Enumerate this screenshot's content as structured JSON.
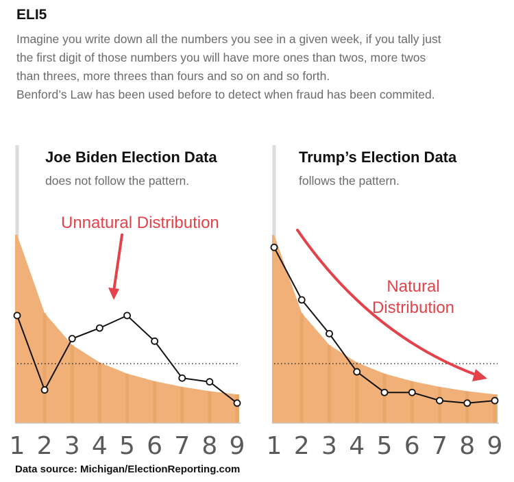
{
  "header": {
    "title": "ELI5",
    "lines": [
      "Imagine you write down all the numbers you see in a given week, if you tally just",
      "the first digit of those numbers you will have more ones than twos, more twos",
      "than threes, more threes than fours and so on and so forth.",
      "Benford’s Law has been used before to detect when fraud has been commited."
    ]
  },
  "source": "Data source: Michigan/ElectionReporting.com",
  "colors": {
    "area": "#f0b078",
    "area_line": "#e4a060",
    "arrow": "#e3424a",
    "line": "#111111",
    "axis_digits": "#5a5a5a"
  },
  "chart_data": [
    {
      "type": "line",
      "title": "Joe Biden Election Data",
      "subtitle": "does not follow the pattern.",
      "annotation": "Unnatural Distribution",
      "x": [
        1,
        2,
        3,
        4,
        5,
        6,
        7,
        8,
        9
      ],
      "series": [
        {
          "values": [
            30.1,
            17.6,
            12.5,
            9.7,
            7.9,
            6.7,
            5.8,
            5.1,
            4.6
          ]
        },
        {
          "values": [
            17.2,
            5.3,
            13.5,
            15.2,
            17.2,
            13.1,
            7.2,
            6.6,
            3.2
          ]
        }
      ],
      "reference_value": 9.5,
      "ylim": [
        0,
        30.1
      ],
      "grid": false
    },
    {
      "type": "line",
      "title": "Trump’s Election Data",
      "subtitle": "follows the pattern.",
      "annotation_lines": [
        "Natural",
        "Distribution"
      ],
      "x": [
        1,
        2,
        3,
        4,
        5,
        6,
        7,
        8,
        9
      ],
      "series": [
        {
          "values": [
            30.1,
            17.6,
            12.5,
            9.7,
            7.9,
            6.7,
            5.8,
            5.1,
            4.6
          ]
        },
        {
          "values": [
            28.1,
            19.7,
            14.3,
            8.2,
            4.9,
            4.9,
            3.6,
            3.2,
            3.6
          ]
        }
      ],
      "reference_value": 9.5,
      "ylim": [
        0,
        30.1
      ],
      "grid": false
    }
  ]
}
